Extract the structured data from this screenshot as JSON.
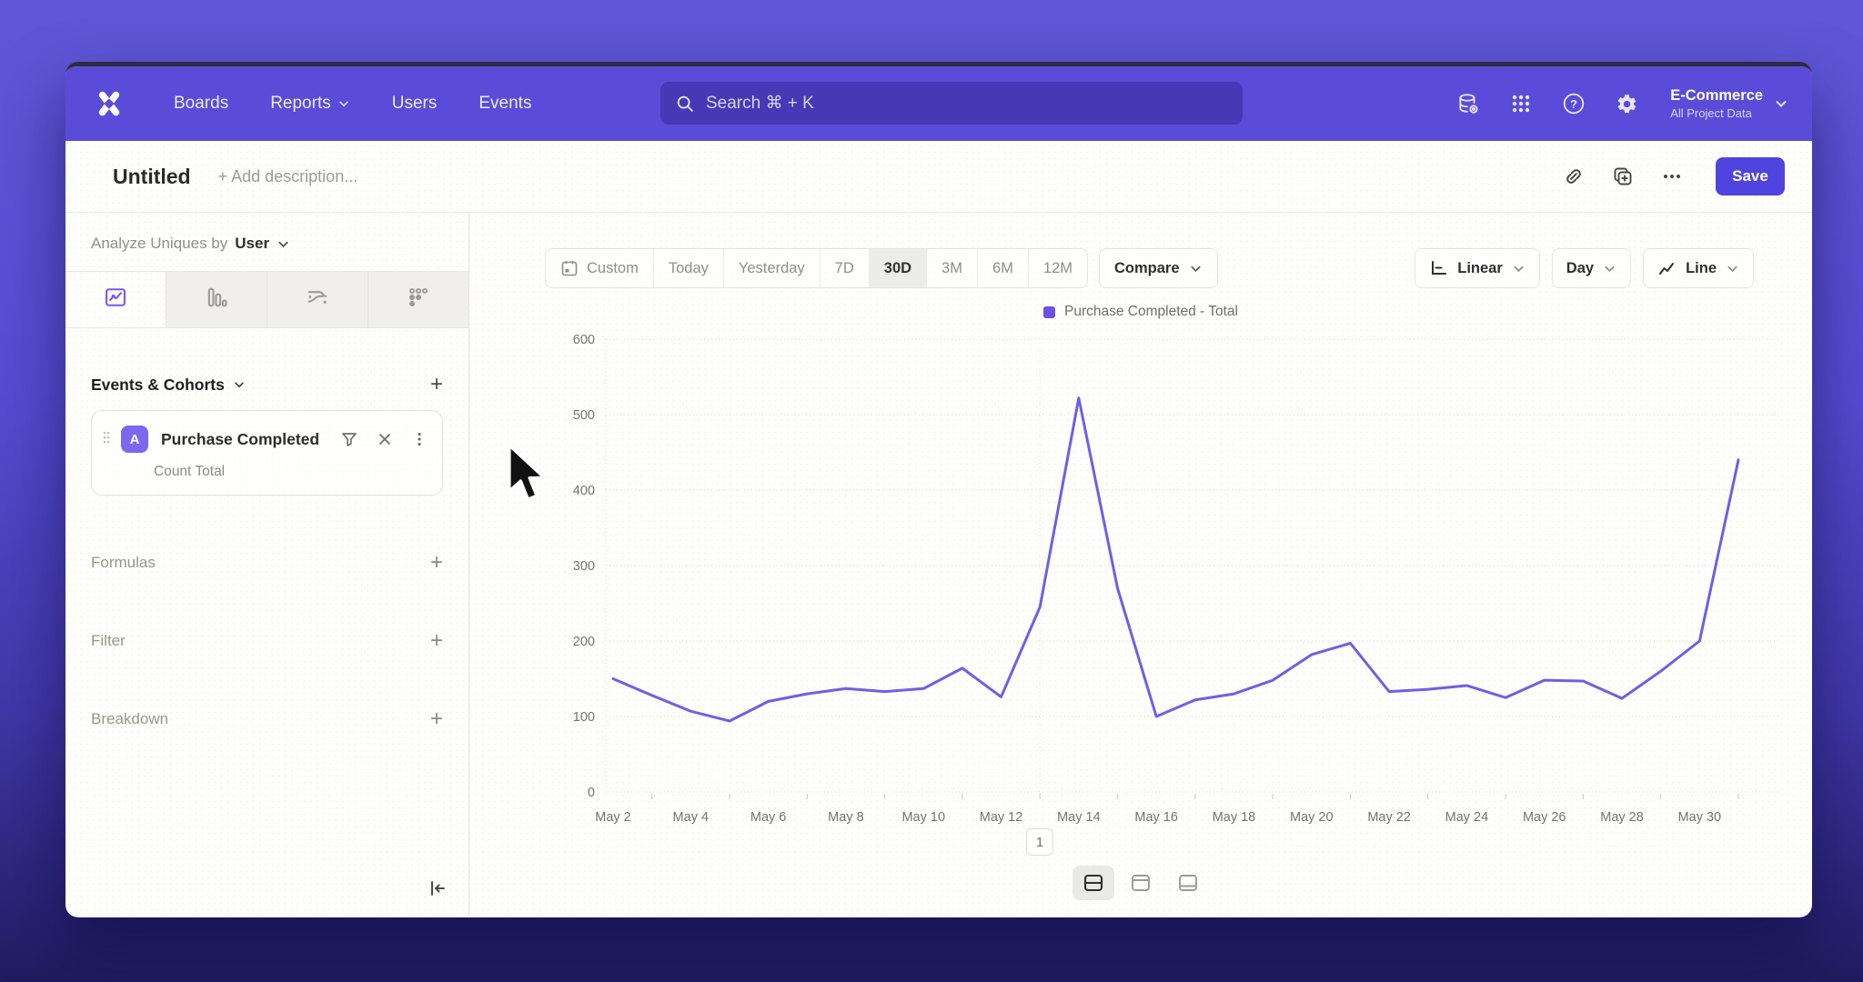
{
  "nav": {
    "items": [
      {
        "label": "Boards",
        "has_dropdown": false
      },
      {
        "label": "Reports",
        "has_dropdown": true
      },
      {
        "label": "Users",
        "has_dropdown": false
      },
      {
        "label": "Events",
        "has_dropdown": false
      }
    ],
    "search_placeholder": "Search  ⌘ + K",
    "project": {
      "name": "E-Commerce",
      "subtitle": "All Project Data"
    }
  },
  "header": {
    "title": "Untitled",
    "description_placeholder": "+ Add description...",
    "save_label": "Save"
  },
  "sidebar": {
    "analyze_label": "Analyze Uniques by",
    "analyze_value": "User",
    "events_header": "Events & Cohorts",
    "event": {
      "letter": "A",
      "name": "Purchase Completed",
      "metric": "Count Total"
    },
    "formulas_label": "Formulas",
    "filter_label": "Filter",
    "breakdown_label": "Breakdown"
  },
  "toolbar": {
    "ranges": [
      "Custom",
      "Today",
      "Yesterday",
      "7D",
      "30D",
      "3M",
      "6M",
      "12M"
    ],
    "active_range": "30D",
    "compare_label": "Compare",
    "scale_label": "Linear",
    "interval_label": "Day",
    "chart_type_label": "Line"
  },
  "chart_data": {
    "type": "line",
    "title": "",
    "categories": [
      "May 2",
      "May 3",
      "May 4",
      "May 5",
      "May 6",
      "May 7",
      "May 8",
      "May 9",
      "May 10",
      "May 11",
      "May 12",
      "May 13",
      "May 14",
      "May 15",
      "May 16",
      "May 17",
      "May 18",
      "May 19",
      "May 20",
      "May 21",
      "May 22",
      "May 23",
      "May 24",
      "May 25",
      "May 26",
      "May 27",
      "May 28",
      "May 29",
      "May 30",
      "May 31"
    ],
    "series": [
      {
        "name": "Purchase Completed - Total",
        "color": "#6f5fe6",
        "values": [
          150,
          128,
          107,
          94,
          120,
          130,
          137,
          133,
          137,
          164,
          126,
          245,
          522,
          270,
          100,
          122,
          130,
          148,
          182,
          197,
          133,
          136,
          141,
          125,
          148,
          147,
          124,
          160,
          200,
          440
        ]
      }
    ],
    "ylim": [
      0,
      600
    ],
    "y_ticks": [
      0,
      100,
      200,
      300,
      400,
      500,
      600
    ],
    "x_tick_every": 2,
    "vline_category": "May 13",
    "grid": "dotted-horizontal",
    "legend_position": "top-center"
  },
  "footer": {
    "page": "1"
  },
  "colors": {
    "nav_bg": "#5a4bd8",
    "accent": "#4f44e0",
    "line": "#6f5fe6",
    "legend_swatch": "#6b50e2",
    "event_badge": "#7b68ee",
    "active_tab_icon": "#7856ff"
  }
}
